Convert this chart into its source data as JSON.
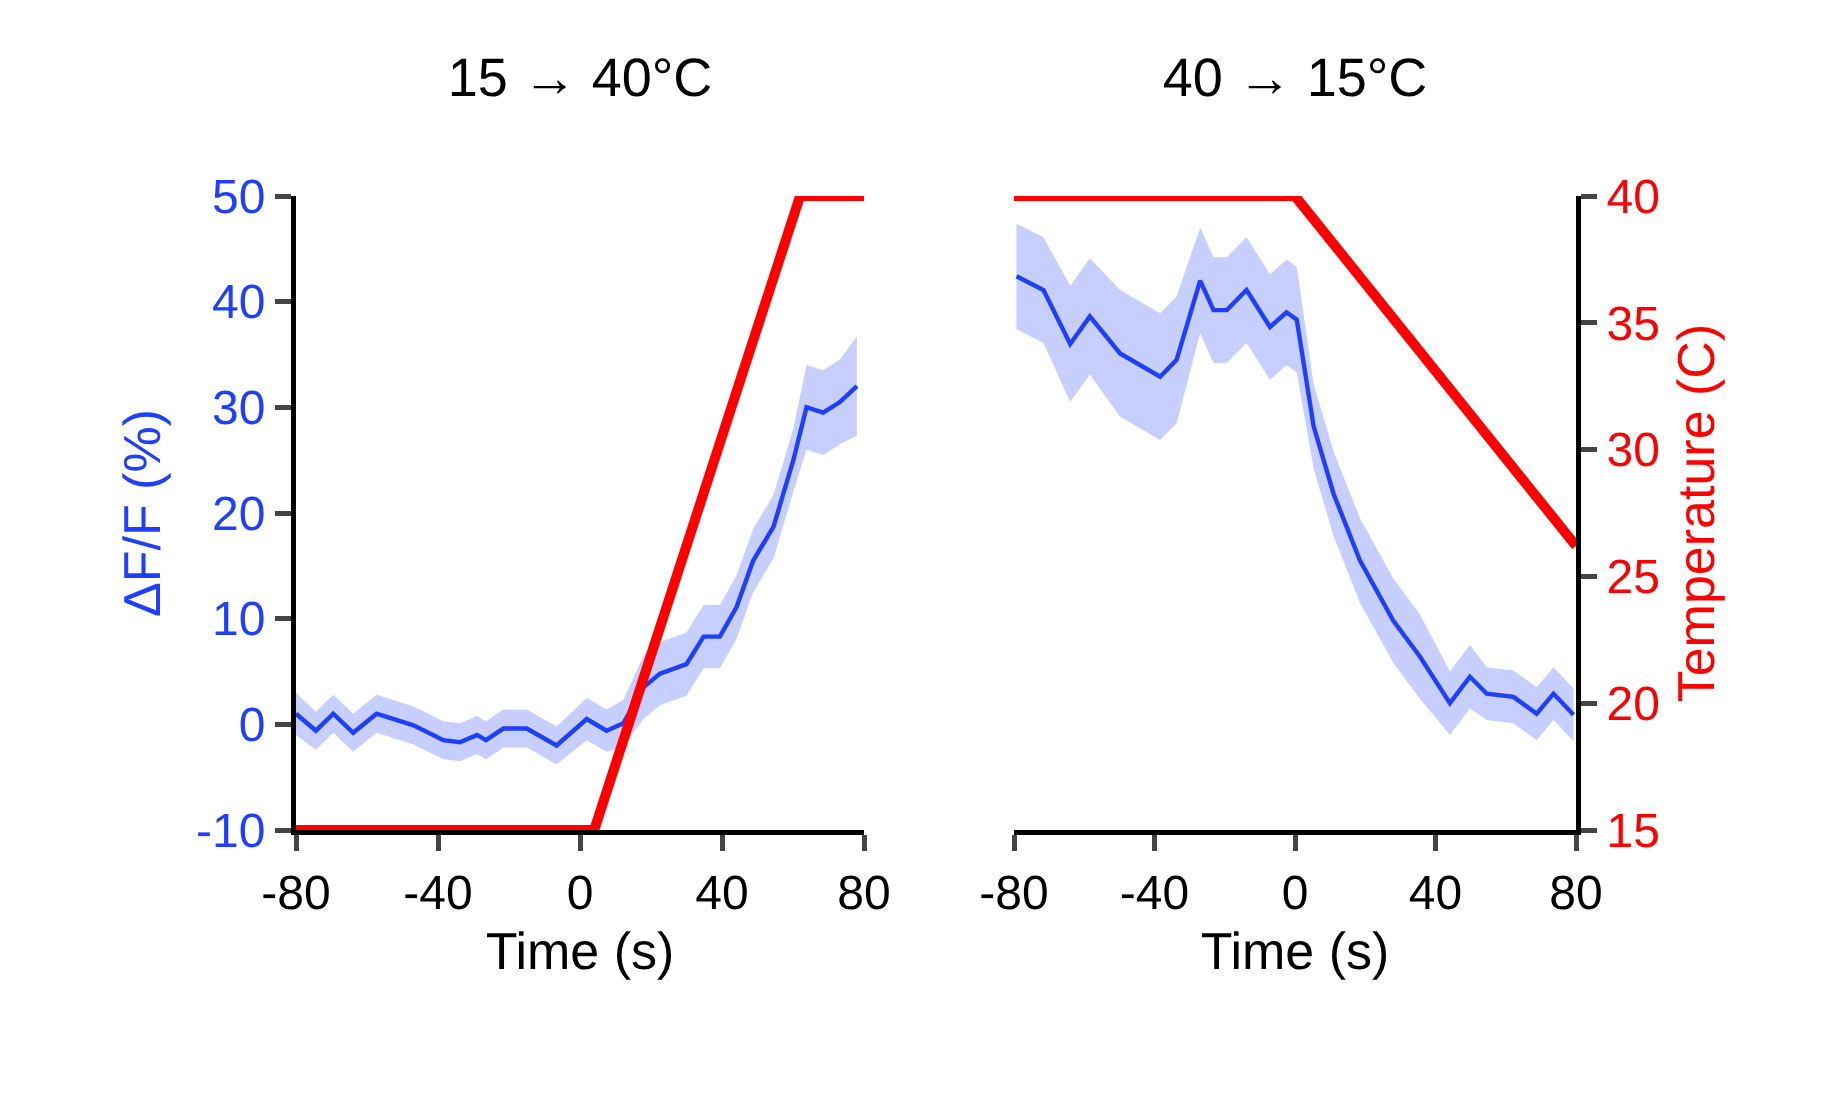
{
  "chart_data": [
    {
      "type": "line",
      "title": "15 → 40°C",
      "xlabel": "Time (s)",
      "ylabel": "ΔF/F (%)",
      "xlim": [
        -80,
        80
      ],
      "xticks": [
        -80,
        -40,
        0,
        40,
        80
      ],
      "ylim": [
        -10,
        50
      ],
      "yticks": [
        -10,
        0,
        10,
        20,
        30,
        40,
        50
      ],
      "y2lim": [
        15,
        40
      ],
      "tick_labels": "x,y",
      "series": [
        {
          "color": "#1f3fff",
          "x": [
            -80,
            -74.4,
            -69.5,
            -63.9,
            -57.3,
            -46.9,
            -38.5,
            -33.8,
            -29,
            -26.5,
            -21.6,
            -15,
            -6.6,
            1.9,
            7.5,
            12.2,
            17.9,
            22.5,
            30,
            34.8,
            39.4,
            44.1,
            48.8,
            54.5,
            60.1,
            63.8,
            68.5,
            73.2,
            78
          ],
          "values": [
            1.0,
            -0.6,
            1.0,
            -0.8,
            1.0,
            -0.1,
            -1.5,
            -1.7,
            -1.0,
            -1.5,
            -0.4,
            -0.4,
            -2.0,
            0.5,
            -0.6,
            0.1,
            3.5,
            4.8,
            5.7,
            8.3,
            8.3,
            11.1,
            15.5,
            18.7,
            25,
            30,
            29.5,
            30.5,
            32
          ],
          "lower": [
            -1.0,
            -2.4,
            -0.8,
            -2.6,
            -0.8,
            -1.9,
            -3.3,
            -3.5,
            -2.8,
            -3.3,
            -2.2,
            -2.2,
            -3.8,
            -1.5,
            -2.6,
            -2.1,
            0.5,
            1.8,
            2.7,
            5.3,
            5.3,
            8.1,
            12.5,
            15.7,
            22,
            26,
            25.5,
            26.5,
            27.3
          ],
          "upper": [
            3.0,
            1.2,
            2.8,
            1.0,
            2.8,
            1.7,
            0.3,
            0.1,
            0.8,
            0.3,
            1.4,
            1.4,
            -0.2,
            2.5,
            1.4,
            2.3,
            6.5,
            7.8,
            8.7,
            11.3,
            11.3,
            14.1,
            18.5,
            21.7,
            28,
            34,
            33.5,
            34.5,
            36.7
          ]
        },
        {
          "color": "#ff0000",
          "axis": "y2",
          "x": [
            -80,
            4,
            62,
            80
          ],
          "values": [
            15,
            15,
            40,
            40
          ]
        }
      ]
    },
    {
      "type": "line",
      "title": "40 → 15°C",
      "xlabel": "Time (s)",
      "y2label": "Temperature (C)",
      "xlim": [
        -80,
        80
      ],
      "xticks": [
        -80,
        -40,
        0,
        40,
        80
      ],
      "ylim": [
        -10,
        50
      ],
      "y2lim": [
        15,
        40
      ],
      "y2ticks": [
        15,
        20,
        25,
        30,
        35,
        40
      ],
      "tick_labels": "x,y2",
      "series": [
        {
          "color": "#1f3fff",
          "x": [
            -79.3,
            -71.6,
            -64,
            -58.4,
            -49.8,
            -38.4,
            -33.7,
            -27,
            -23.2,
            -19.4,
            -13.8,
            -7.1,
            -2.4,
            0.5,
            5.3,
            11,
            18.5,
            28,
            35.6,
            44.1,
            49.8,
            54.6,
            62.2,
            68.8,
            73.6,
            79.3
          ],
          "values": [
            42.4,
            41.1,
            36.0,
            38.6,
            35.1,
            32.9,
            34.5,
            42.0,
            39.2,
            39.2,
            41.1,
            37.6,
            39.0,
            38.3,
            28.2,
            21.8,
            15.5,
            9.8,
            6.4,
            2.0,
            4.5,
            2.9,
            2.6,
            1.0,
            2.9,
            0.9
          ],
          "lower": [
            37.4,
            36.1,
            30.5,
            33.1,
            29.1,
            26.9,
            28.5,
            37.0,
            34.2,
            34.2,
            36.1,
            32.6,
            34.0,
            33.3,
            24.2,
            17.8,
            11.5,
            5.8,
            2.4,
            -1.0,
            1.5,
            0.4,
            0.1,
            -1.5,
            0.4,
            -1.6
          ],
          "upper": [
            47.4,
            46.1,
            41.5,
            44.1,
            41.1,
            38.9,
            40.5,
            47.0,
            44.2,
            44.2,
            46.1,
            42.6,
            44.0,
            43.3,
            32.2,
            25.8,
            19.5,
            13.8,
            10.4,
            5.0,
            7.5,
            5.4,
            5.1,
            3.5,
            5.4,
            3.4
          ]
        },
        {
          "color": "#ff0000",
          "axis": "y2",
          "x": [
            -80,
            0,
            80
          ],
          "values": [
            40,
            40,
            26.2
          ]
        }
      ]
    }
  ]
}
